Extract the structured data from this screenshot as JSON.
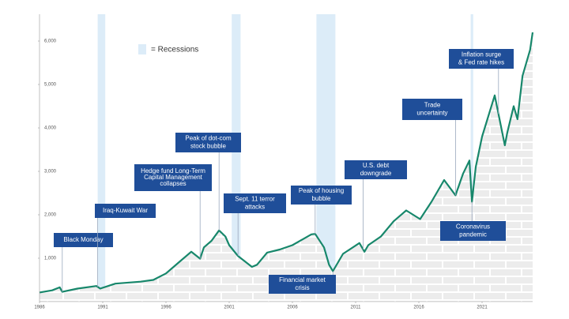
{
  "chart_data": {
    "type": "line",
    "color": "#17876b",
    "legend": "= Recessions",
    "recession_color": "#dcecf8",
    "xlim": [
      1986,
      2025
    ],
    "xticks": [
      1986,
      1991,
      1996,
      2001,
      2006,
      2011,
      2016,
      2021
    ],
    "ylim": [
      0,
      6500
    ],
    "yticks": [
      {
        "value": 1000,
        "label": "1,000"
      },
      {
        "value": 2000,
        "label": "2,000"
      },
      {
        "value": 3000,
        "label": "3,000"
      },
      {
        "value": 4000,
        "label": "4,000"
      },
      {
        "value": 5000,
        "label": "5,000"
      },
      {
        "value": 6000,
        "label": "6,000"
      }
    ],
    "recessions": [
      [
        1990.6,
        1991.2
      ],
      [
        2001.2,
        2001.9
      ],
      [
        2007.9,
        2009.4
      ],
      [
        2020.1,
        2020.3
      ]
    ],
    "x": [
      1986,
      1987,
      1987.6,
      1987.8,
      1989,
      1990.5,
      1990.8,
      1992,
      1994,
      1995,
      1996,
      1997,
      1998,
      1998.7,
      1999,
      1999.6,
      2000.2,
      2000.7,
      2001,
      2001.7,
      2002.8,
      2003.2,
      2004,
      2005,
      2006,
      2007.5,
      2007.8,
      2008.5,
      2008.9,
      2009.2,
      2010,
      2011.3,
      2011.7,
      2012,
      2013,
      2014,
      2015,
      2016.1,
      2017,
      2018,
      2018.9,
      2019.5,
      2020,
      2020.2,
      2020.5,
      2021,
      2022,
      2022.8,
      2023,
      2023.5,
      2023.8,
      2024.2,
      2024.5,
      2024.8,
      2025
    ],
    "values": [
      210,
      260,
      330,
      225,
      300,
      360,
      300,
      415,
      460,
      500,
      650,
      900,
      1150,
      990,
      1250,
      1400,
      1640,
      1500,
      1300,
      1050,
      800,
      850,
      1130,
      1200,
      1300,
      1550,
      1560,
      1250,
      850,
      700,
      1100,
      1350,
      1150,
      1300,
      1500,
      1850,
      2100,
      1900,
      2300,
      2800,
      2450,
      2950,
      3250,
      2300,
      3100,
      3800,
      4750,
      3600,
      3900,
      4500,
      4200,
      5200,
      5500,
      5800,
      6200
    ],
    "annotations": [
      {
        "x": 1987.8,
        "lines": [
          "Black Monday"
        ]
      },
      {
        "x": 1990.6,
        "lines": [
          "Iraq-Kuwait War"
        ]
      },
      {
        "x": 1998.7,
        "lines": [
          "Hedge fund Long-Term",
          "Capital Management",
          "collapses"
        ]
      },
      {
        "x": 2000.2,
        "lines": [
          "Peak of dot-com",
          "stock bubble"
        ]
      },
      {
        "x": 2001.7,
        "lines": [
          "Sept. 11 terror",
          "attacks"
        ]
      },
      {
        "x": 2007.8,
        "lines": [
          "Peak of housing",
          "bubble"
        ]
      },
      {
        "x": 2009.2,
        "lines": [
          "Financial market",
          "crisis"
        ]
      },
      {
        "x": 2011.6,
        "lines": [
          "U.S. debt",
          "downgrade"
        ]
      },
      {
        "x": 2018.9,
        "lines": [
          "Trade",
          "uncertainty"
        ]
      },
      {
        "x": 2020.2,
        "lines": [
          "Coronavirus",
          "pandemic"
        ]
      },
      {
        "x": 2022.3,
        "lines": [
          "Inflation surge",
          "& Fed rate hikes"
        ]
      }
    ]
  }
}
